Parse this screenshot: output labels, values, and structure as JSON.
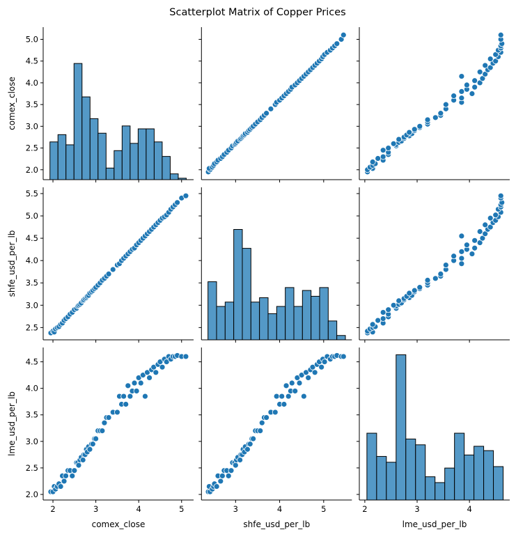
{
  "chart_data": {
    "type": "scatter",
    "title": "Scatterplot Matrix of Copper Prices",
    "variables": [
      {
        "name": "comex_close",
        "range": [
          1.772,
          5.28
        ],
        "ticks": [
          2.0,
          2.5,
          3.0,
          3.5,
          4.0,
          4.5,
          5.0
        ],
        "y_tick_labels": [
          "2.0",
          "2.5",
          "3.0",
          "3.5",
          "4.0",
          "4.5",
          "5.0"
        ],
        "x_ticks": [
          2,
          3,
          4,
          5
        ],
        "x_tick_labels": [
          "2",
          "3",
          "4",
          "5"
        ]
      },
      {
        "name": "shfe_usd_per_lb",
        "range": [
          2.225,
          5.64
        ],
        "ticks": [
          2.5,
          3.0,
          3.5,
          4.0,
          4.5,
          5.0,
          5.5
        ],
        "y_tick_labels": [
          "2.5",
          "3.0",
          "3.5",
          "4.0",
          "4.5",
          "5.0",
          "5.5"
        ],
        "x_ticks": [
          3,
          4,
          5
        ],
        "x_tick_labels": [
          "3",
          "4",
          "5"
        ]
      },
      {
        "name": "lme_usd_per_lb",
        "range": [
          1.895,
          4.77
        ],
        "ticks": [
          2.0,
          2.5,
          3.0,
          3.5,
          4.0,
          4.5
        ],
        "y_tick_labels": [
          "2.0",
          "2.5",
          "3.0",
          "3.5",
          "4.0",
          "4.5"
        ],
        "x_ticks": [
          2,
          3,
          4
        ],
        "x_tick_labels": [
          "2",
          "3",
          "4"
        ]
      }
    ],
    "histograms": [
      {
        "variable": "comex_close",
        "bin_start": 1.93,
        "bin_width": 0.187,
        "relative_heights": [
          0.26,
          0.31,
          0.24,
          0.8,
          0.57,
          0.42,
          0.32,
          0.08,
          0.2,
          0.37,
          0.25,
          0.35,
          0.35,
          0.26,
          0.16,
          0.04,
          0.01
        ]
      },
      {
        "variable": "shfe_usd_per_lb",
        "bin_start": 2.373,
        "bin_width": 0.195,
        "relative_heights": [
          0.4,
          0.23,
          0.26,
          0.76,
          0.63,
          0.26,
          0.29,
          0.18,
          0.23,
          0.36,
          0.23,
          0.34,
          0.3,
          0.36,
          0.13,
          0.03
        ]
      },
      {
        "variable": "lme_usd_per_lb",
        "bin_start": 2.04,
        "bin_width": 0.186,
        "relative_heights": [
          0.46,
          0.3,
          0.26,
          1.0,
          0.42,
          0.38,
          0.16,
          0.12,
          0.22,
          0.46,
          0.31,
          0.37,
          0.34,
          0.23
        ]
      }
    ],
    "points": {
      "comex_close": [
        1.95,
        2.0,
        2.03,
        2.06,
        2.1,
        2.14,
        2.18,
        2.22,
        2.26,
        2.3,
        2.35,
        2.4,
        2.45,
        2.5,
        2.55,
        2.58,
        2.6,
        2.63,
        2.66,
        2.7,
        2.72,
        2.75,
        2.78,
        2.8,
        2.83,
        2.86,
        2.9,
        2.93,
        2.97,
        3.0,
        3.05,
        3.1,
        3.15,
        3.2,
        3.25,
        3.3,
        3.4,
        3.5,
        3.55,
        3.6,
        3.65,
        3.7,
        3.75,
        3.8,
        3.85,
        3.9,
        3.95,
        4.0,
        4.05,
        4.1,
        4.15,
        4.2,
        4.25,
        4.3,
        4.35,
        4.4,
        4.45,
        4.5,
        4.55,
        4.6,
        4.65,
        4.7,
        4.75,
        4.8,
        4.85,
        4.9,
        5.0,
        5.1
      ],
      "shfe_usd_per_lb": [
        2.38,
        2.42,
        2.4,
        2.47,
        2.5,
        2.52,
        2.57,
        2.6,
        2.66,
        2.7,
        2.74,
        2.8,
        2.84,
        2.9,
        2.93,
        2.98,
        3.0,
        3.02,
        3.05,
        3.1,
        3.12,
        3.15,
        3.17,
        3.2,
        3.22,
        3.27,
        3.3,
        3.33,
        3.37,
        3.4,
        3.45,
        3.5,
        3.56,
        3.6,
        3.65,
        3.7,
        3.8,
        3.9,
        3.93,
        4.0,
        4.05,
        4.1,
        4.15,
        4.2,
        4.25,
        4.28,
        4.35,
        4.4,
        4.45,
        4.5,
        4.55,
        4.6,
        4.65,
        4.7,
        4.75,
        4.8,
        4.85,
        4.9,
        4.95,
        4.98,
        5.02,
        5.08,
        5.15,
        5.2,
        5.25,
        5.3,
        5.4,
        5.45
      ],
      "lme_usd_per_lb": [
        2.05,
        2.05,
        2.15,
        2.1,
        2.15,
        2.2,
        2.15,
        2.35,
        2.25,
        2.35,
        2.45,
        2.45,
        2.35,
        2.45,
        2.6,
        2.6,
        2.55,
        2.65,
        2.7,
        2.65,
        2.75,
        2.75,
        2.85,
        2.8,
        2.9,
        2.85,
        2.95,
        2.95,
        3.05,
        3.05,
        3.2,
        3.2,
        3.2,
        3.35,
        3.45,
        3.45,
        3.55,
        3.55,
        3.85,
        3.7,
        3.85,
        3.7,
        4.05,
        3.85,
        3.95,
        4.1,
        3.95,
        4.2,
        4.1,
        4.25,
        3.85,
        4.3,
        4.2,
        4.35,
        4.4,
        4.3,
        4.45,
        4.5,
        4.4,
        4.55,
        4.5,
        4.6,
        4.55,
        4.6,
        4.6,
        4.62,
        4.6,
        4.6
      ]
    },
    "colors": {
      "marker": "#1f77b4",
      "hist_fill": "#5499c7",
      "edge": "#000000"
    },
    "grid": false,
    "legend": "none"
  }
}
